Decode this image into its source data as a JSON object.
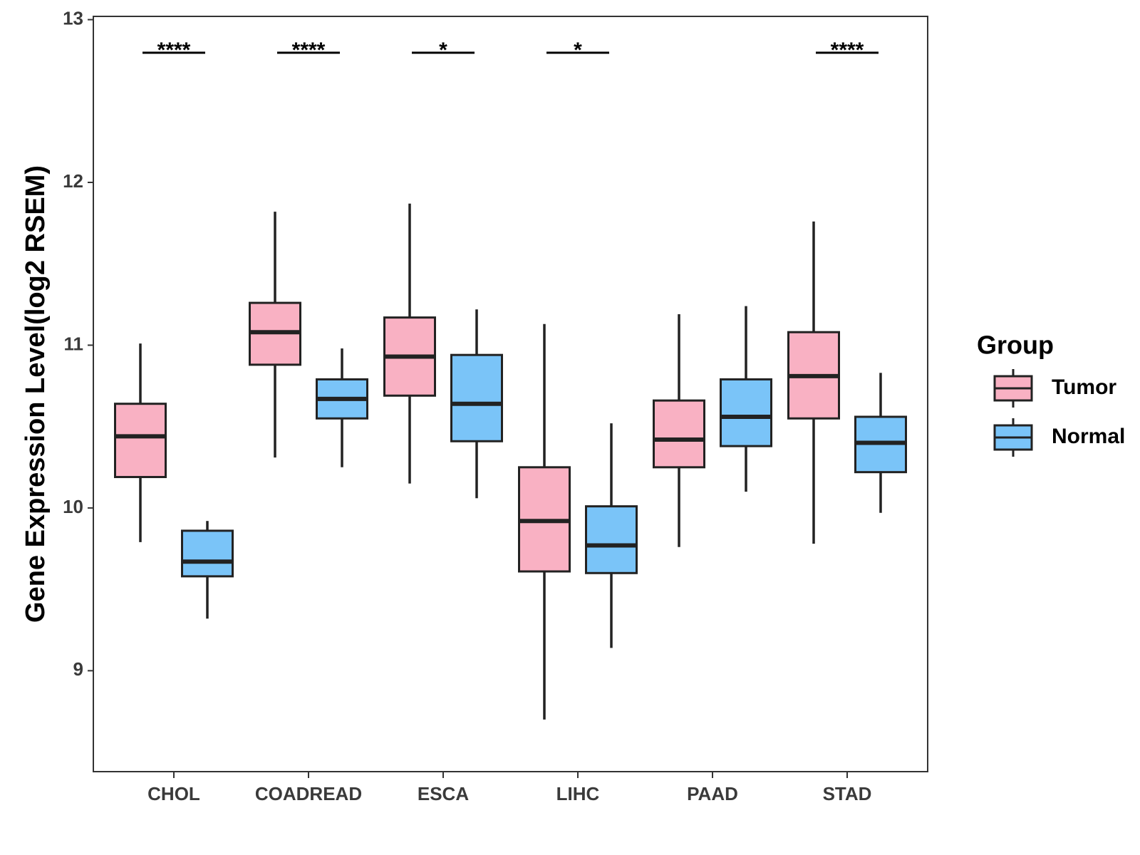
{
  "chart_data": {
    "type": "box",
    "title": "",
    "xlabel": "",
    "ylabel": "Gene Expression Level(log2 RSEM)",
    "ylim": [
      8.38,
      13.02
    ],
    "yticks": [
      9,
      10,
      11,
      12,
      13
    ],
    "categories": [
      "CHOL",
      "COADREAD",
      "ESCA",
      "LIHC",
      "PAAD",
      "STAD"
    ],
    "series": [
      {
        "name": "Tumor",
        "color": "#F9B1C3",
        "boxes": [
          {
            "min": 9.79,
            "q1": 10.19,
            "median": 10.44,
            "q3": 10.64,
            "max": 11.01
          },
          {
            "min": 10.31,
            "q1": 10.88,
            "median": 11.08,
            "q3": 11.26,
            "max": 11.82
          },
          {
            "min": 10.15,
            "q1": 10.69,
            "median": 10.93,
            "q3": 11.17,
            "max": 11.87
          },
          {
            "min": 8.7,
            "q1": 9.61,
            "median": 9.92,
            "q3": 10.25,
            "max": 11.13
          },
          {
            "min": 9.76,
            "q1": 10.25,
            "median": 10.42,
            "q3": 10.66,
            "max": 11.19
          },
          {
            "min": 9.78,
            "q1": 10.55,
            "median": 10.81,
            "q3": 11.08,
            "max": 11.76
          }
        ]
      },
      {
        "name": "Normal",
        "color": "#7AC4F8",
        "boxes": [
          {
            "min": 9.32,
            "q1": 9.58,
            "median": 9.67,
            "q3": 9.86,
            "max": 9.92
          },
          {
            "min": 10.25,
            "q1": 10.55,
            "median": 10.67,
            "q3": 10.79,
            "max": 10.98
          },
          {
            "min": 10.06,
            "q1": 10.41,
            "median": 10.64,
            "q3": 10.94,
            "max": 11.22
          },
          {
            "min": 9.14,
            "q1": 9.6,
            "median": 9.77,
            "q3": 10.01,
            "max": 10.52
          },
          {
            "min": 10.1,
            "q1": 10.38,
            "median": 10.56,
            "q3": 10.79,
            "max": 11.24
          },
          {
            "min": 9.97,
            "q1": 10.22,
            "median": 10.4,
            "q3": 10.56,
            "max": 10.83
          }
        ]
      }
    ],
    "significance": [
      {
        "category": "CHOL",
        "label": "****"
      },
      {
        "category": "COADREAD",
        "label": "****"
      },
      {
        "category": "ESCA",
        "label": "*"
      },
      {
        "category": "LIHC",
        "label": "*"
      },
      {
        "category": "STAD",
        "label": "****"
      }
    ],
    "legend": {
      "title": "Group",
      "position": "right",
      "entries": [
        "Tumor",
        "Normal"
      ]
    },
    "grid": false
  }
}
